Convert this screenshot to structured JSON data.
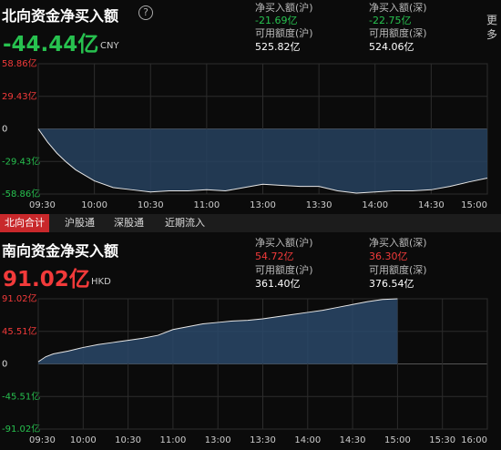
{
  "north": {
    "title": "北向资金净买入额",
    "total": "-44.44亿",
    "currency": "CNY",
    "stats": [
      {
        "label": "净买入额(沪)",
        "value": "-21.69亿"
      },
      {
        "label": "净买入额(深)",
        "value": "-22.75亿"
      },
      {
        "label": "可用额度(沪)",
        "value": "525.82亿"
      },
      {
        "label": "可用额度(深)",
        "value": "524.06亿"
      }
    ]
  },
  "more": "更多",
  "tabs": [
    "北向合计",
    "沪股通",
    "深股通",
    "近期流入"
  ],
  "south": {
    "title": "南向资金净买入额",
    "total": "91.02亿",
    "currency": "HKD",
    "stats": [
      {
        "label": "净买入额(沪)",
        "value": "54.72亿"
      },
      {
        "label": "净买入额(深)",
        "value": "36.30亿"
      },
      {
        "label": "可用额度(沪)",
        "value": "361.40亿"
      },
      {
        "label": "可用额度(深)",
        "value": "376.54亿"
      }
    ]
  },
  "chart_data": [
    {
      "type": "line",
      "color": "#e6e6e6",
      "fill": "#27425f",
      "grid": true,
      "x": [
        0,
        5,
        10,
        15,
        20,
        30,
        40,
        50,
        60,
        70,
        80,
        90,
        100,
        110,
        120,
        130,
        140,
        150,
        160,
        170,
        180,
        190,
        200,
        210,
        220,
        230,
        240
      ],
      "values": [
        0,
        -12,
        -22,
        -30,
        -37,
        -47,
        -53,
        -55,
        -57,
        -56,
        -56,
        -55,
        -56,
        -53,
        -50,
        -51,
        -52,
        -52,
        -56,
        -58,
        -57,
        -56,
        -56,
        -55,
        -52,
        -48,
        -44.44
      ],
      "xlim": [
        0,
        240
      ],
      "xticks": [
        {
          "value": 0,
          "label": "09:30"
        },
        {
          "value": 30,
          "label": "10:00"
        },
        {
          "value": 60,
          "label": "10:30"
        },
        {
          "value": 90,
          "label": "11:00"
        },
        {
          "value": 120,
          "label": "13:00"
        },
        {
          "value": 150,
          "label": "13:30"
        },
        {
          "value": 180,
          "label": "14:00"
        },
        {
          "value": 210,
          "label": "14:30"
        },
        {
          "value": 240,
          "label": "15:00"
        }
      ],
      "ylim": [
        -58.86,
        58.86
      ],
      "yticks": [
        {
          "value": 58.86,
          "label": "58.86亿"
        },
        {
          "value": 29.43,
          "label": "29.43亿"
        },
        0,
        {
          "value": -29.43,
          "label": "-29.43亿"
        },
        {
          "value": -58.86,
          "label": "-58.86亿"
        }
      ]
    },
    {
      "type": "line",
      "color": "#e6e6e6",
      "fill": "#2a4868",
      "grid": true,
      "x": [
        0,
        5,
        10,
        20,
        30,
        40,
        50,
        60,
        70,
        80,
        90,
        100,
        110,
        120,
        130,
        140,
        150,
        160,
        170,
        180,
        190,
        200,
        210,
        220,
        230,
        240
      ],
      "values": [
        3,
        10,
        14,
        18,
        23,
        27,
        30,
        33,
        36,
        40,
        48,
        52,
        56,
        58,
        60,
        61,
        63,
        66,
        69,
        72,
        75,
        79,
        83,
        87,
        90,
        91.02
      ],
      "xlim": [
        0,
        300
      ],
      "xticks": [
        {
          "value": 0,
          "label": "09:30"
        },
        {
          "value": 30,
          "label": "10:00"
        },
        {
          "value": 60,
          "label": "10:30"
        },
        {
          "value": 90,
          "label": "11:00"
        },
        {
          "value": 120,
          "label": "13:00"
        },
        {
          "value": 150,
          "label": "13:30"
        },
        {
          "value": 180,
          "label": "14:00"
        },
        {
          "value": 210,
          "label": "14:30"
        },
        {
          "value": 240,
          "label": "15:00"
        },
        {
          "value": 270,
          "label": "15:30"
        },
        {
          "value": 300,
          "label": "16:00"
        }
      ],
      "ylim": [
        -91.02,
        91.02
      ],
      "yticks": [
        {
          "value": 91.02,
          "label": "91.02亿"
        },
        {
          "value": 45.51,
          "label": "45.51亿"
        },
        0,
        {
          "value": -45.51,
          "label": "-45.51亿"
        },
        {
          "value": -91.02,
          "label": "-91.02亿"
        }
      ]
    }
  ]
}
